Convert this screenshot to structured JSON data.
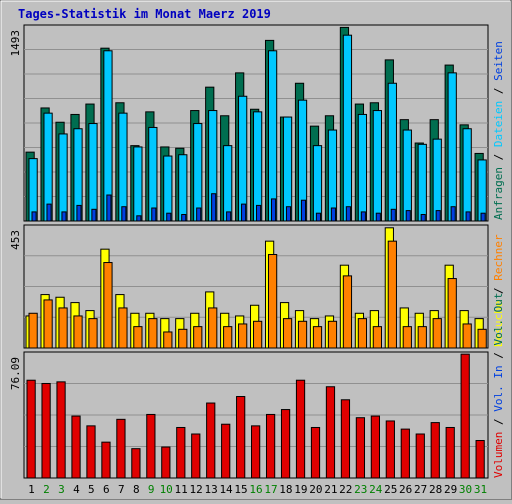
{
  "title": "Tages-Statistik im Monat Maerz 2019",
  "colors": {
    "background": "#c0c0c0",
    "title": "#0000c0",
    "hits": "#006e50",
    "files": "#00c8ff",
    "pages": "#0040e0",
    "visits": "#ffff00",
    "sites": "#ff8000",
    "kbytes": "#e00000",
    "weekend": "#008000",
    "weekday": "#000000"
  },
  "chart_data": [
    {
      "type": "bar",
      "ylabel_top": "1493",
      "ymax": 1493,
      "legend": [
        {
          "text": "Anfragen",
          "color_key": "hits"
        },
        {
          "text": "Dateien",
          "color_key": "files"
        },
        {
          "text": "Seiten",
          "color_key": "pages"
        }
      ],
      "categories": [
        "1",
        "2",
        "3",
        "4",
        "5",
        "6",
        "7",
        "8",
        "9",
        "10",
        "11",
        "12",
        "13",
        "14",
        "15",
        "16",
        "17",
        "18",
        "19",
        "20",
        "21",
        "22",
        "23",
        "24",
        "25",
        "26",
        "27",
        "28",
        "29",
        "30",
        "31"
      ],
      "series": [
        {
          "name": "Anfragen",
          "color_key": "hits",
          "values": [
            530,
            870,
            760,
            820,
            900,
            1330,
            910,
            580,
            840,
            570,
            560,
            850,
            1030,
            810,
            1140,
            860,
            1390,
            800,
            1060,
            730,
            810,
            1490,
            900,
            910,
            1240,
            780,
            600,
            780,
            1200,
            740,
            520
          ]
        },
        {
          "name": "Dateien",
          "color_key": "files",
          "values": [
            480,
            830,
            670,
            710,
            750,
            1310,
            830,
            570,
            720,
            500,
            510,
            750,
            850,
            580,
            960,
            840,
            1310,
            800,
            930,
            580,
            700,
            1430,
            820,
            850,
            1060,
            700,
            590,
            630,
            1140,
            710,
            470
          ]
        },
        {
          "name": "Seiten",
          "color_key": "pages",
          "values": [
            70,
            130,
            70,
            120,
            90,
            200,
            110,
            40,
            100,
            60,
            50,
            100,
            210,
            70,
            130,
            120,
            170,
            110,
            160,
            60,
            100,
            110,
            70,
            60,
            90,
            80,
            50,
            80,
            110,
            70,
            60
          ]
        }
      ]
    },
    {
      "type": "bar",
      "ylabel_top": "453",
      "ymax": 453,
      "legend": [
        {
          "text": "Besuche",
          "color_key": "visits"
        },
        {
          "text": "Rechner",
          "color_key": "sites"
        }
      ],
      "categories": [
        "1",
        "2",
        "3",
        "4",
        "5",
        "6",
        "7",
        "8",
        "9",
        "10",
        "11",
        "12",
        "13",
        "14",
        "15",
        "16",
        "17",
        "18",
        "19",
        "20",
        "21",
        "22",
        "23",
        "24",
        "25",
        "26",
        "27",
        "28",
        "29",
        "30",
        "31"
      ],
      "series": [
        {
          "name": "Besuche",
          "color_key": "visits",
          "values": [
            120,
            200,
            190,
            170,
            140,
            370,
            200,
            130,
            130,
            110,
            110,
            130,
            210,
            130,
            120,
            160,
            400,
            170,
            140,
            110,
            120,
            310,
            130,
            140,
            450,
            150,
            130,
            140,
            310,
            140,
            110
          ]
        },
        {
          "name": "Rechner",
          "color_key": "sites",
          "values": [
            130,
            180,
            150,
            120,
            110,
            320,
            150,
            80,
            110,
            60,
            70,
            80,
            150,
            80,
            90,
            100,
            350,
            110,
            100,
            80,
            100,
            270,
            110,
            80,
            400,
            80,
            80,
            110,
            260,
            90,
            70
          ]
        }
      ]
    },
    {
      "type": "bar",
      "ylabel_top": "76.09",
      "ymax": 76.09,
      "legend": [
        {
          "text": "Volumen",
          "color_key": "kbytes"
        },
        {
          "text": "Vol. In",
          "color_key": "pages"
        },
        {
          "text": "Vol. Out",
          "color_key": "hits"
        }
      ],
      "categories": [
        "1",
        "2",
        "3",
        "4",
        "5",
        "6",
        "7",
        "8",
        "9",
        "10",
        "11",
        "12",
        "13",
        "14",
        "15",
        "16",
        "17",
        "18",
        "19",
        "20",
        "21",
        "22",
        "23",
        "24",
        "25",
        "26",
        "27",
        "28",
        "29",
        "30",
        "31"
      ],
      "series": [
        {
          "name": "Volumen",
          "color_key": "kbytes",
          "values": [
            60,
            58,
            59,
            38,
            32,
            22,
            36,
            18,
            39,
            19,
            31,
            27,
            46,
            33,
            50,
            32,
            39,
            42,
            60,
            31,
            56,
            48,
            37,
            38,
            35,
            30,
            27,
            34,
            31,
            76,
            23
          ]
        }
      ]
    }
  ],
  "x_axis": {
    "labels": [
      "1",
      "2",
      "3",
      "4",
      "5",
      "6",
      "7",
      "8",
      "9",
      "10",
      "11",
      "12",
      "13",
      "14",
      "15",
      "16",
      "17",
      "18",
      "19",
      "20",
      "21",
      "22",
      "23",
      "24",
      "25",
      "26",
      "27",
      "28",
      "29",
      "30",
      "31"
    ],
    "weekend": [
      false,
      true,
      true,
      false,
      false,
      false,
      false,
      false,
      true,
      true,
      false,
      false,
      false,
      false,
      false,
      true,
      true,
      false,
      false,
      false,
      false,
      false,
      true,
      true,
      false,
      false,
      false,
      false,
      false,
      true,
      true
    ]
  },
  "separator": "/"
}
